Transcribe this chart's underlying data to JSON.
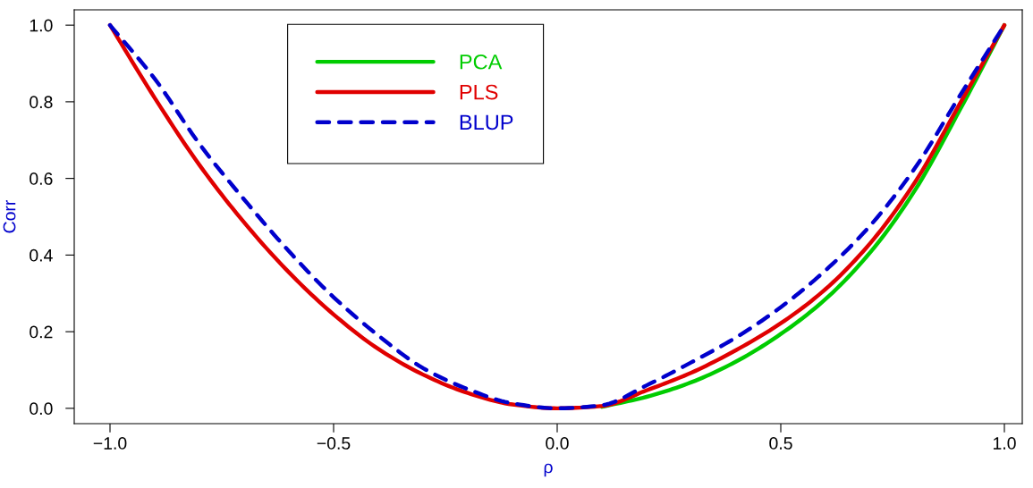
{
  "chart_data": {
    "type": "line",
    "xlabel": "ρ",
    "ylabel": "Corr",
    "x": [
      -1,
      -0.9,
      -0.8,
      -0.7,
      -0.6,
      -0.5,
      -0.4,
      -0.3,
      -0.2,
      -0.1,
      0,
      0.1,
      0.2,
      0.3,
      0.4,
      0.5,
      0.6,
      0.7,
      0.8,
      0.9,
      1
    ],
    "series": [
      {
        "name": "PCA",
        "color": "#00cc00",
        "line_style": "solid",
        "values": [
          null,
          null,
          null,
          null,
          null,
          null,
          null,
          null,
          null,
          null,
          null,
          0.004,
          0.03,
          0.068,
          0.122,
          0.194,
          0.285,
          0.407,
          0.569,
          0.778,
          1
        ]
      },
      {
        "name": "PLS",
        "color": "#e00000",
        "line_style": "solid",
        "values": [
          1,
          0.81,
          0.635,
          0.485,
          0.355,
          0.245,
          0.155,
          0.088,
          0.04,
          0.01,
          0,
          0.006,
          0.047,
          0.093,
          0.152,
          0.222,
          0.311,
          0.431,
          0.59,
          0.794,
          1
        ]
      },
      {
        "name": "BLUP",
        "color": "#0000cc",
        "line_style": "dashed",
        "values": [
          1,
          0.86,
          0.69,
          0.545,
          0.41,
          0.29,
          0.19,
          0.105,
          0.05,
          0.013,
          0,
          0.008,
          0.06,
          0.12,
          0.185,
          0.264,
          0.36,
          0.477,
          0.627,
          0.815,
          1
        ]
      }
    ],
    "xlim": [
      -1.08,
      1.04
    ],
    "ylim": [
      -0.04,
      1.04
    ],
    "xticks": [
      {
        "value": -1,
        "label": "−1.0"
      },
      {
        "value": -0.5,
        "label": "−0.5"
      },
      {
        "value": 0,
        "label": "0.0"
      },
      {
        "value": 0.5,
        "label": "0.5"
      },
      {
        "value": 1,
        "label": "1.0"
      }
    ],
    "yticks": [
      {
        "value": 0,
        "label": "0.0"
      },
      {
        "value": 0.2,
        "label": "0.2"
      },
      {
        "value": 0.4,
        "label": "0.4"
      },
      {
        "value": 0.6,
        "label": "0.6"
      },
      {
        "value": 0.8,
        "label": "0.8"
      },
      {
        "value": 1,
        "label": "1.0"
      }
    ],
    "grid": false,
    "legend": "top"
  }
}
